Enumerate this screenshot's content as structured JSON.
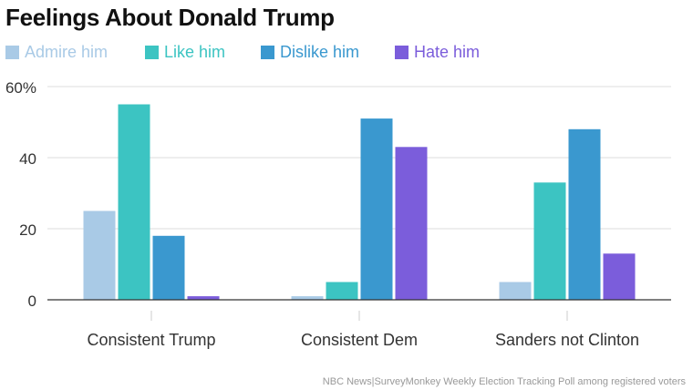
{
  "chart_data": {
    "type": "bar",
    "title": "Feelings About Donald Trump",
    "categories": [
      "Consistent Trump",
      "Consistent Dem",
      "Sanders not Clinton"
    ],
    "series": [
      {
        "name": "Admire him",
        "color": "#a9cae6",
        "values": [
          25,
          1,
          5
        ]
      },
      {
        "name": "Like him",
        "color": "#3cc4c2",
        "values": [
          55,
          5,
          33
        ]
      },
      {
        "name": "Dislike him",
        "color": "#3a98cf",
        "values": [
          18,
          51,
          48
        ]
      },
      {
        "name": "Hate him",
        "color": "#7b5ddb",
        "values": [
          1,
          43,
          13
        ]
      }
    ],
    "yticks": [
      "0",
      "20",
      "40",
      "60%"
    ],
    "ylim": [
      0,
      60
    ],
    "grid": true,
    "legend_position": "top-left",
    "source": "NBC News|SurveyMonkey Weekly Election Tracking Poll among registered voters"
  }
}
